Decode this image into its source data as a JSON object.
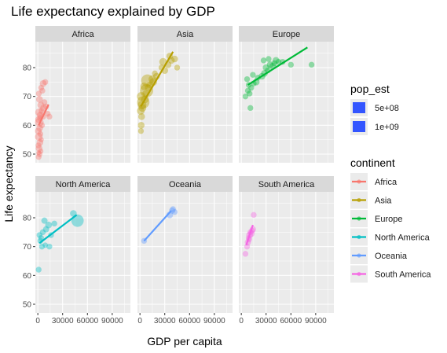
{
  "chart_data": {
    "type": "scatter",
    "title": "Life expectancy explained by GDP",
    "xlabel": "GDP per capita",
    "ylabel": "Life expectancy",
    "xlim": [
      -3000,
      112000
    ],
    "ylim": [
      47,
      89
    ],
    "x_ticks": [
      0,
      30000,
      60000,
      90000
    ],
    "x_tick_labels": [
      "0",
      "30000",
      "60000",
      "90000"
    ],
    "y_ticks": [
      50,
      60,
      70,
      80
    ],
    "y_tick_labels": [
      "50",
      "60",
      "70",
      "80"
    ],
    "grid": true,
    "legend_position": "right",
    "size_legend": {
      "title": "pop_est",
      "entries": [
        {
          "label": "5e+08",
          "value": 500000000
        },
        {
          "label": "1e+09",
          "value": 1000000000
        }
      ],
      "color": "#3355ff"
    },
    "color_legend": {
      "title": "continent",
      "entries": [
        {
          "label": "Africa",
          "color": "#F8766D"
        },
        {
          "label": "Asia",
          "color": "#B79F00"
        },
        {
          "label": "Europe",
          "color": "#00BA38"
        },
        {
          "label": "North America",
          "color": "#00BFC4"
        },
        {
          "label": "Oceania",
          "color": "#619CFF"
        },
        {
          "label": "South America",
          "color": "#F564E3"
        }
      ]
    },
    "panels": [
      {
        "name": "Africa",
        "color": "#F8766D",
        "fit": [
          [
            1000,
            60
          ],
          [
            13000,
            67.2
          ]
        ],
        "points": [
          [
            1000,
            49,
            0.2
          ],
          [
            2000,
            50,
            0.2
          ],
          [
            3500,
            51,
            0.15
          ],
          [
            1500,
            52,
            0.3
          ],
          [
            800,
            53,
            0.2
          ],
          [
            2500,
            54,
            0.3
          ],
          [
            4000,
            55,
            0.15
          ],
          [
            1200,
            56,
            0.4
          ],
          [
            3000,
            57,
            0.2
          ],
          [
            600,
            58,
            0.3
          ],
          [
            2200,
            59,
            0.3
          ],
          [
            5000,
            60,
            0.2
          ],
          [
            1800,
            61,
            0.5
          ],
          [
            900,
            62,
            0.3
          ],
          [
            6500,
            63,
            0.2
          ],
          [
            2800,
            63.5,
            0.3
          ],
          [
            1500,
            64.5,
            0.4
          ],
          [
            4500,
            65,
            0.2
          ],
          [
            7000,
            66,
            0.3
          ],
          [
            10000,
            66.5,
            0.2
          ],
          [
            3500,
            67,
            0.3
          ],
          [
            8000,
            68,
            0.2
          ],
          [
            2000,
            69,
            0.3
          ],
          [
            1200,
            71,
            0.2
          ],
          [
            5500,
            72,
            0.2
          ],
          [
            4000,
            73,
            0.2
          ],
          [
            6500,
            74.5,
            0.3
          ],
          [
            9000,
            75,
            0.2
          ],
          [
            12000,
            64,
            0.2
          ],
          [
            14000,
            63,
            0.2
          ],
          [
            1100,
            50.5,
            0.1
          ],
          [
            2600,
            62.5,
            0.2
          ]
        ]
      },
      {
        "name": "Asia",
        "color": "#B79F00",
        "fit": [
          [
            1000,
            66.5
          ],
          [
            40000,
            85.5
          ]
        ],
        "points": [
          [
            1500,
            60,
            0.3
          ],
          [
            2000,
            63,
            0.3
          ],
          [
            1000,
            65,
            0.4
          ],
          [
            3000,
            66,
            0.4
          ],
          [
            2500,
            67,
            0.5
          ],
          [
            4000,
            68,
            0.9
          ],
          [
            6000,
            69,
            0.4
          ],
          [
            1500,
            70,
            0.5
          ],
          [
            7000,
            71,
            0.3
          ],
          [
            8000,
            72,
            1.0
          ],
          [
            10000,
            73,
            0.3
          ],
          [
            5000,
            73.5,
            0.4
          ],
          [
            12000,
            74,
            0.3
          ],
          [
            16000,
            75,
            0.4
          ],
          [
            9000,
            75.5,
            0.9
          ],
          [
            15000,
            76,
            0.4
          ],
          [
            20000,
            77,
            0.3
          ],
          [
            18000,
            78,
            0.2
          ],
          [
            30000,
            79,
            0.3
          ],
          [
            26000,
            80,
            0.2
          ],
          [
            45000,
            80,
            0.2
          ],
          [
            34000,
            81,
            0.3
          ],
          [
            28000,
            82,
            0.4
          ],
          [
            38000,
            82.5,
            0.3
          ],
          [
            42000,
            83,
            0.3
          ],
          [
            36000,
            84,
            0.3
          ],
          [
            1200,
            58,
            0.2
          ]
        ]
      },
      {
        "name": "Europe",
        "color": "#00BA38",
        "fit": [
          [
            8000,
            74
          ],
          [
            80000,
            87
          ]
        ],
        "points": [
          [
            5000,
            70,
            0.2
          ],
          [
            10000,
            71,
            0.2
          ],
          [
            8000,
            72,
            0.2
          ],
          [
            12000,
            73,
            0.2
          ],
          [
            9000,
            74,
            0.2
          ],
          [
            15000,
            74.5,
            0.2
          ],
          [
            18000,
            75,
            0.3
          ],
          [
            7000,
            76,
            0.2
          ],
          [
            20000,
            76.5,
            0.2
          ],
          [
            25000,
            77,
            0.3
          ],
          [
            14000,
            77.5,
            0.2
          ],
          [
            28000,
            78,
            0.3
          ],
          [
            32000,
            79,
            0.2
          ],
          [
            30000,
            80,
            0.3
          ],
          [
            38000,
            80.5,
            0.3
          ],
          [
            35000,
            81,
            0.3
          ],
          [
            40000,
            81.5,
            0.2
          ],
          [
            45000,
            82,
            0.2
          ],
          [
            42000,
            82.5,
            0.3
          ],
          [
            50000,
            82,
            0.2
          ],
          [
            33000,
            83,
            0.2
          ],
          [
            60000,
            81,
            0.2
          ],
          [
            85000,
            81,
            0.2
          ],
          [
            27000,
            82.5,
            0.2
          ],
          [
            11000,
            66,
            0.2
          ]
        ]
      },
      {
        "name": "North America",
        "color": "#00BFC4",
        "fit": [
          [
            2000,
            71.2
          ],
          [
            47000,
            81
          ]
        ],
        "points": [
          [
            1000,
            62,
            0.2
          ],
          [
            5000,
            70,
            0.2
          ],
          [
            9000,
            70.5,
            0.15
          ],
          [
            3000,
            72,
            0.2
          ],
          [
            14000,
            70,
            0.2
          ],
          [
            2000,
            74,
            0.2
          ],
          [
            6000,
            75,
            0.2
          ],
          [
            10000,
            76,
            0.25
          ],
          [
            13000,
            77.5,
            0.3
          ],
          [
            8000,
            79,
            0.25
          ],
          [
            20000,
            78,
            0.2
          ],
          [
            43000,
            81.5,
            0.3
          ],
          [
            48000,
            79,
            0.9
          ],
          [
            4000,
            73,
            0.2
          ],
          [
            16000,
            74,
            0.2
          ]
        ]
      },
      {
        "name": "Oceania",
        "color": "#619CFF",
        "fit": [
          [
            5000,
            72
          ],
          [
            38000,
            82.5
          ]
        ],
        "points": [
          [
            5000,
            72,
            0.2
          ],
          [
            36000,
            81,
            0.3
          ],
          [
            42000,
            82,
            0.2
          ],
          [
            39000,
            82.5,
            0.25
          ],
          [
            40000,
            83,
            0.2
          ]
        ]
      },
      {
        "name": "South America",
        "color": "#F564E3",
        "fit": [
          [
            6000,
            70.5
          ],
          [
            14000,
            77.5
          ]
        ],
        "points": [
          [
            5000,
            67.5,
            0.2
          ],
          [
            7000,
            70,
            0.2
          ],
          [
            8000,
            71.5,
            0.25
          ],
          [
            9000,
            73,
            0.2
          ],
          [
            10000,
            74,
            0.3
          ],
          [
            11000,
            75,
            0.2
          ],
          [
            12000,
            74.5,
            0.3
          ],
          [
            13000,
            75.5,
            0.2
          ],
          [
            14000,
            76,
            0.25
          ],
          [
            15000,
            81,
            0.2
          ],
          [
            9500,
            72.5,
            0.2
          ]
        ]
      }
    ]
  }
}
